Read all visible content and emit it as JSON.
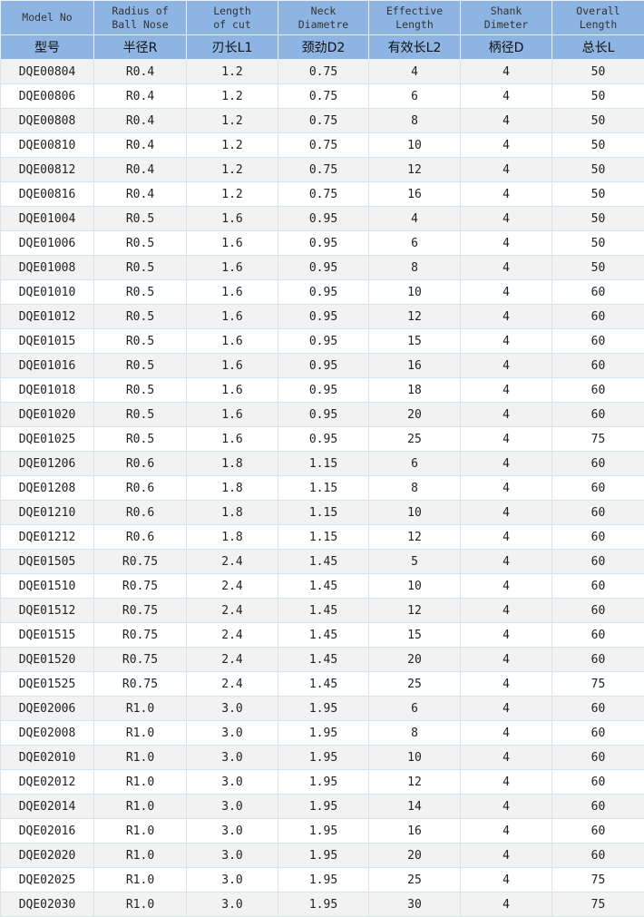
{
  "headers_en": [
    "Model No",
    "Radius of\nBall Nose",
    "Length\nof cut",
    "Neck\nDiametre",
    "Effective\nLength",
    "Shank\nDimeter",
    "Overall\nLength"
  ],
  "headers_cn": [
    "型号",
    "半径R",
    "刃长L1",
    "颈劲D2",
    "有效长L2",
    "柄径D",
    "总长L"
  ],
  "header_color": "#8db4e2",
  "rows": [
    [
      "DQE00804",
      "R0.4",
      "1.2",
      "0.75",
      "4",
      "4",
      "50"
    ],
    [
      "DQE00806",
      "R0.4",
      "1.2",
      "0.75",
      "6",
      "4",
      "50"
    ],
    [
      "DQE00808",
      "R0.4",
      "1.2",
      "0.75",
      "8",
      "4",
      "50"
    ],
    [
      "DQE00810",
      "R0.4",
      "1.2",
      "0.75",
      "10",
      "4",
      "50"
    ],
    [
      "DQE00812",
      "R0.4",
      "1.2",
      "0.75",
      "12",
      "4",
      "50"
    ],
    [
      "DQE00816",
      "R0.4",
      "1.2",
      "0.75",
      "16",
      "4",
      "50"
    ],
    [
      "DQE01004",
      "R0.5",
      "1.6",
      "0.95",
      "4",
      "4",
      "50"
    ],
    [
      "DQE01006",
      "R0.5",
      "1.6",
      "0.95",
      "6",
      "4",
      "50"
    ],
    [
      "DQE01008",
      "R0.5",
      "1.6",
      "0.95",
      "8",
      "4",
      "50"
    ],
    [
      "DQE01010",
      "R0.5",
      "1.6",
      "0.95",
      "10",
      "4",
      "60"
    ],
    [
      "DQE01012",
      "R0.5",
      "1.6",
      "0.95",
      "12",
      "4",
      "60"
    ],
    [
      "DQE01015",
      "R0.5",
      "1.6",
      "0.95",
      "15",
      "4",
      "60"
    ],
    [
      "DQE01016",
      "R0.5",
      "1.6",
      "0.95",
      "16",
      "4",
      "60"
    ],
    [
      "DQE01018",
      "R0.5",
      "1.6",
      "0.95",
      "18",
      "4",
      "60"
    ],
    [
      "DQE01020",
      "R0.5",
      "1.6",
      "0.95",
      "20",
      "4",
      "60"
    ],
    [
      "DQE01025",
      "R0.5",
      "1.6",
      "0.95",
      "25",
      "4",
      "75"
    ],
    [
      "DQE01206",
      "R0.6",
      "1.8",
      "1.15",
      "6",
      "4",
      "60"
    ],
    [
      "DQE01208",
      "R0.6",
      "1.8",
      "1.15",
      "8",
      "4",
      "60"
    ],
    [
      "DQE01210",
      "R0.6",
      "1.8",
      "1.15",
      "10",
      "4",
      "60"
    ],
    [
      "DQE01212",
      "R0.6",
      "1.8",
      "1.15",
      "12",
      "4",
      "60"
    ],
    [
      "DQE01505",
      "R0.75",
      "2.4",
      "1.45",
      "5",
      "4",
      "60"
    ],
    [
      "DQE01510",
      "R0.75",
      "2.4",
      "1.45",
      "10",
      "4",
      "60"
    ],
    [
      "DQE01512",
      "R0.75",
      "2.4",
      "1.45",
      "12",
      "4",
      "60"
    ],
    [
      "DQE01515",
      "R0.75",
      "2.4",
      "1.45",
      "15",
      "4",
      "60"
    ],
    [
      "DQE01520",
      "R0.75",
      "2.4",
      "1.45",
      "20",
      "4",
      "60"
    ],
    [
      "DQE01525",
      "R0.75",
      "2.4",
      "1.45",
      "25",
      "4",
      "75"
    ],
    [
      "DQE02006",
      "R1.0",
      "3.0",
      "1.95",
      "6",
      "4",
      "60"
    ],
    [
      "DQE02008",
      "R1.0",
      "3.0",
      "1.95",
      "8",
      "4",
      "60"
    ],
    [
      "DQE02010",
      "R1.0",
      "3.0",
      "1.95",
      "10",
      "4",
      "60"
    ],
    [
      "DQE02012",
      "R1.0",
      "3.0",
      "1.95",
      "12",
      "4",
      "60"
    ],
    [
      "DQE02014",
      "R1.0",
      "3.0",
      "1.95",
      "14",
      "4",
      "60"
    ],
    [
      "DQE02016",
      "R1.0",
      "3.0",
      "1.95",
      "16",
      "4",
      "60"
    ],
    [
      "DQE02020",
      "R1.0",
      "3.0",
      "1.95",
      "20",
      "4",
      "60"
    ],
    [
      "DQE02025",
      "R1.0",
      "3.0",
      "1.95",
      "25",
      "4",
      "75"
    ],
    [
      "DQE02030",
      "R1.0",
      "3.0",
      "1.95",
      "30",
      "4",
      "75"
    ]
  ]
}
